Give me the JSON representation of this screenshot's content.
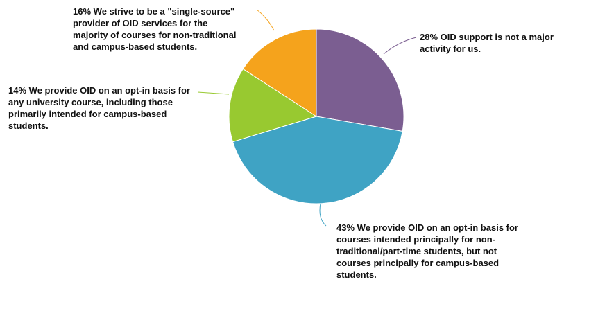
{
  "chart_data": {
    "type": "pie",
    "categories": [
      "OID support is not a major activity for us.",
      "We provide OID on an opt-in basis for courses intended principally for non-traditional/part-time students, but not courses principally for campus-based students.",
      "We provide OID on an opt-in basis for any university course, including those primarily intended for campus-based students.",
      "We strive to be a \"single-source\" provider of OID services for the majority of courses for non-traditional and campus-based students."
    ],
    "values": [
      28,
      43,
      14,
      16
    ],
    "value_labels": [
      "28%",
      "43%",
      "14%",
      "16%"
    ],
    "colors": [
      "#7b5e91",
      "#3fa3c4",
      "#98c930",
      "#f5a31c"
    ]
  }
}
